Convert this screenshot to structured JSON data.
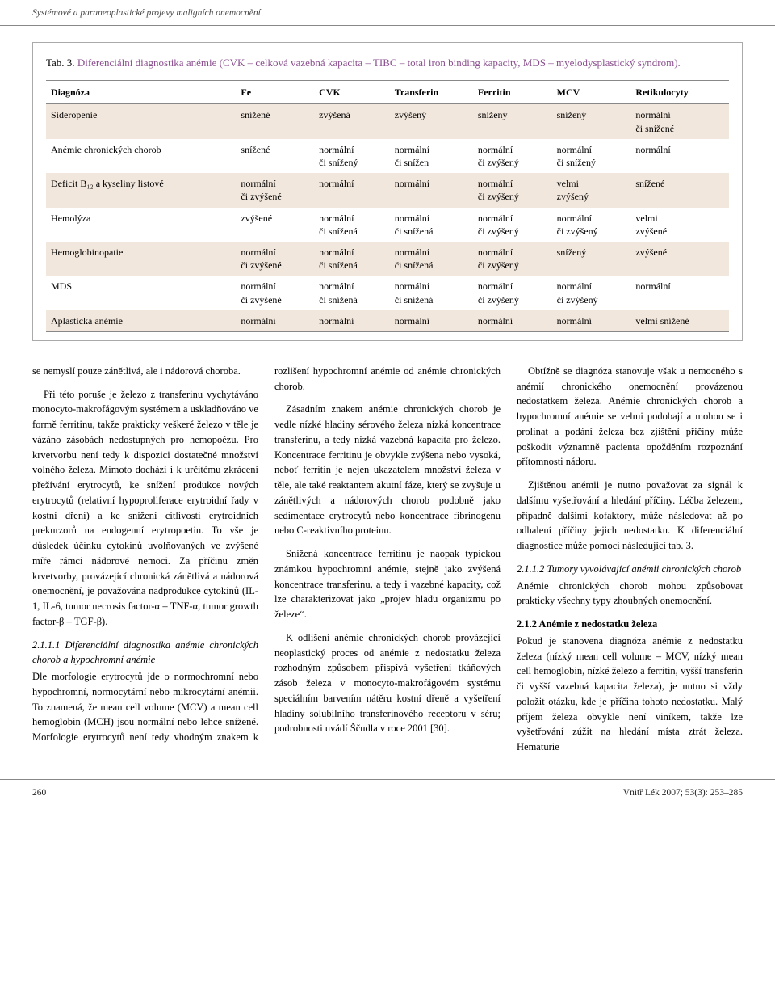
{
  "header": {
    "running_title": "Systémové a paraneoplastické projevy maligních onemocnění"
  },
  "table": {
    "caption_prefix": "Tab. 3. ",
    "caption_main": "Diferenciální diagnostika anémie",
    "caption_rest": " (CVK – celková vazebná kapacita – TIBC – total iron binding kapacity, MDS – myelodysplastický syndrom).",
    "columns": [
      "Diagnóza",
      "Fe",
      "CVK",
      "Transferin",
      "Ferritin",
      "MCV",
      "Retikulocyty"
    ],
    "rows": [
      {
        "shaded": true,
        "cells": [
          "Sideropenie",
          "snížené",
          "zvýšená",
          "zvýšený",
          "snížený",
          "snížený",
          "normální\nči snížené"
        ]
      },
      {
        "shaded": false,
        "cells": [
          "Anémie chronických chorob",
          "snížené",
          "normální\nči snížený",
          "normální\nči snížen",
          "normální\nči zvýšený",
          "normální\nči snížený",
          "normální"
        ]
      },
      {
        "shaded": true,
        "cells": [
          "Deficit B₁₂ a kyseliny listové",
          "normální\nči zvýšené",
          "normální",
          "normální",
          "normální\nči zvýšený",
          "velmi\nzvýšený",
          "snížené"
        ]
      },
      {
        "shaded": false,
        "cells": [
          "Hemolýza",
          "zvýšené",
          "normální\nči snížená",
          "normální\nči snížená",
          "normální\nči zvýšený",
          "normální\nči zvýšený",
          "velmi\nzvýšené"
        ]
      },
      {
        "shaded": true,
        "cells": [
          "Hemoglobinopatie",
          "normální\nči zvýšené",
          "normální\nči snížená",
          "normální\nči snížená",
          "normální\nči zvýšený",
          "snížený",
          "zvýšené"
        ]
      },
      {
        "shaded": false,
        "cells": [
          "MDS",
          "normální\nči zvýšené",
          "normální\nči snížená",
          "normální\nči snížená",
          "normální\nči zvýšený",
          "normální\nči zvýšený",
          "normální"
        ]
      },
      {
        "shaded": true,
        "cells": [
          "Aplastická anémie",
          "normální",
          "normální",
          "normální",
          "normální",
          "normální",
          "velmi snížené"
        ]
      }
    ],
    "shade_color": "#f2e7dc",
    "border_color": "#888888"
  },
  "body": {
    "p1": "se nemyslí pouze zánětlivá, ale i nádorová choroba.",
    "p2": "Při této poruše je železo z transferinu vychytáváno monocyto-makrofágovým systémem a uskladňováno ve formě ferritinu, takže prakticky veškeré železo v těle je vázáno zásobách nedostupných pro hemopoézu. Pro krvetvorbu není tedy k dispozici dostatečné množství volného železa. Mimoto dochází i k určitému zkrácení přežívání erytrocytů, ke snížení produkce nových erytrocytů (relativní hypoproliferace erytroidní řady v kostní dřeni) a ke snížení citlivosti erytroidních prekurzorů na endogenní erytropoetin. To vše je důsledek účinku cytokinů uvolňovaných ve zvýšené míře rámci nádorové nemoci. Za příčinu změn krvetvorby, provázející chronická zánětlivá a nádorová onemocnění, je považována nadprodukce cytokinů (IL-1, IL-6, tumor necrosis factor-α – TNF-α, tumor growth factor-β – TGF-β).",
    "h211_1": "2.1.1.1 Diferenciální diagnostika anémie chronických chorob a hypochromní anémie",
    "p3": "Dle morfologie erytrocytů jde o normochromní nebo hypochromní, normocytární nebo mikrocytární anémii. To znamená, že mean cell volume (MCV) a mean cell hemoglobin (MCH) jsou normální nebo lehce snížené. Morfologie erytrocytů není tedy vhodným znakem k rozlišení hypochromní anémie od anémie chronických chorob.",
    "p4": "Zásadním znakem anémie chronických chorob je vedle nízké hladiny sérového železa nízká koncentrace transferinu, a tedy nízká vazebná kapacita pro železo. Koncentrace ferritinu je obvykle zvýšena nebo vysoká, neboť ferritin je nejen ukazatelem množství železa v těle, ale také reaktantem akutní fáze, který se zvyšuje u zánětlivých a nádorových chorob podobně jako sedimentace erytrocytů nebo koncentrace fibrinogenu nebo C-reaktivního proteinu.",
    "p5": "Snížená koncentrace ferritinu je naopak typickou známkou hypochromní anémie, stejně jako zvýšená koncentrace transferinu, a tedy i vazebné kapacity, což lze charakterizovat jako „projev hladu organizmu po železe“.",
    "p6": "K odlišení anémie chronických chorob provázející neoplastický proces od anémie z nedostatku železa rozhodným způsobem přispívá vyšetření tkáňových zásob železa v monocyto-makrofágovém systému speciálním barvením nátěru kostní dřeně a vyšetření hladiny solubilního transferinového receptoru v séru; podrobnosti uvádí Ščudla v roce 2001 [30].",
    "p7": "Obtížně se diagnóza stanovuje však u nemocného s anémií chronického onemocnění provázenou nedostatkem železa. Anémie chronických chorob a hypochromní anémie se velmi podobají a mohou se i prolínat a podání železa bez zjištění příčiny může poškodit významně pacienta opožděním rozpoznání přítomnosti nádoru.",
    "p8": "Zjištěnou anémii je nutno považovat za signál k dalšímu vyšetřování a hledání příčiny. Léčba železem, případně dalšími kofaktory, může následovat až po odhalení příčiny jejich nedostatku. K diferenciální diagnostice může pomoci následující tab. 3.",
    "h211_2": "2.1.1.2 Tumory vyvolávající anémii chronických chorob",
    "p9": "Anémie chronických chorob mohou způsobovat prakticky všechny typy zhoubných onemocnění.",
    "h212": "2.1.2 Anémie z nedostatku železa",
    "p10": "Pokud je stanovena diagnóza anémie z nedostatku železa (nízký mean cell volume – MCV, nízký mean cell hemoglobin, nízké železo a ferritin, vyšší transferin či vyšší vazebná kapacita železa), je nutno si vždy položit otázku, kde je příčina tohoto nedostatku. Malý příjem železa obvykle není viníkem, takže lze vyšetřování zúžit na hledání místa ztrát železa. Hematurie"
  },
  "footer": {
    "page": "260",
    "citation": "Vnitř Lék 2007; 53(3): 253–285"
  }
}
